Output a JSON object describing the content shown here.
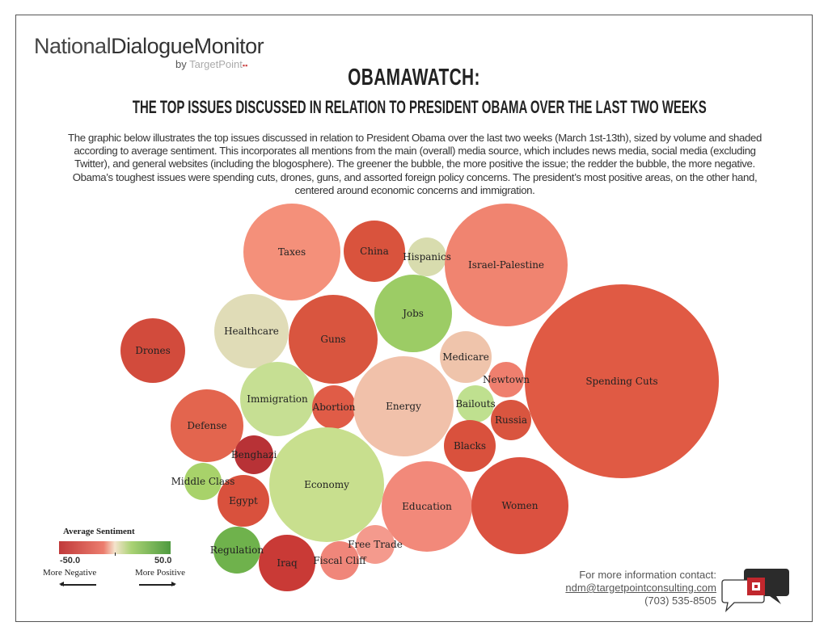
{
  "logo": {
    "text_light": "National",
    "text_bold": "DialogueMonitor",
    "by": "by",
    "brand": "TargetPoint"
  },
  "header": {
    "title": "OBAMAWATCH:",
    "subtitle": "THE TOP ISSUES DISCUSSED IN RELATION TO PRESIDENT OBAMA OVER THE LAST TWO WEEKS",
    "description": "The graphic below illustrates the top issues discussed in relation to President Obama over the last two weeks (March 1st-13th), sized by volume and shaded according to average sentiment. This incorporates all mentions from the main (overall) media source, which includes news media, social media (excluding Twitter), and general websites (including the blogosphere). The greener the bubble, the more positive the issue; the redder the bubble, the more negative. Obama’s toughest issues were spending cuts, drones, guns, and assorted foreign policy concerns. The president’s most positive areas, on the other hand, centered around economic concerns and immigration."
  },
  "chart_data": {
    "type": "bubble",
    "size_encoding": "volume",
    "color_encoding": "average sentiment",
    "bubbles": [
      {
        "label": "Taxes",
        "sentiment": -22,
        "color": "#f4907a"
      },
      {
        "label": "China",
        "sentiment": -38,
        "color": "#d9533d"
      },
      {
        "label": "Hispanics",
        "sentiment": 5,
        "color": "#d8dcae"
      },
      {
        "label": "Israel-Palestine",
        "sentiment": -26,
        "color": "#f08470"
      },
      {
        "label": "Jobs",
        "sentiment": 22,
        "color": "#9ccc65"
      },
      {
        "label": "Healthcare",
        "sentiment": 3,
        "color": "#e0dcb7"
      },
      {
        "label": "Guns",
        "sentiment": -37,
        "color": "#d9553f"
      },
      {
        "label": "Drones",
        "sentiment": -40,
        "color": "#d24b3c"
      },
      {
        "label": "Medicare",
        "sentiment": -6,
        "color": "#efc4ab"
      },
      {
        "label": "Spending Cuts",
        "sentiment": -35,
        "color": "#e05a44"
      },
      {
        "label": "Newtown",
        "sentiment": -28,
        "color": "#ef7f6e"
      },
      {
        "label": "Immigration",
        "sentiment": 12,
        "color": "#c6df93"
      },
      {
        "label": "Abortion",
        "sentiment": -35,
        "color": "#e05c47"
      },
      {
        "label": "Energy",
        "sentiment": -7,
        "color": "#f1c1aa"
      },
      {
        "label": "Bailouts",
        "sentiment": 14,
        "color": "#bfe08f"
      },
      {
        "label": "Russia",
        "sentiment": -38,
        "color": "#d9553f"
      },
      {
        "label": "Defense",
        "sentiment": -32,
        "color": "#e3654e"
      },
      {
        "label": "Blacks",
        "sentiment": -39,
        "color": "#d9513d"
      },
      {
        "label": "Benghazi",
        "sentiment": -48,
        "color": "#b83236"
      },
      {
        "label": "Economy",
        "sentiment": 12,
        "color": "#c8df8e"
      },
      {
        "label": "Middle Class",
        "sentiment": 20,
        "color": "#a8d26a"
      },
      {
        "label": "Egypt",
        "sentiment": -39,
        "color": "#d9513d"
      },
      {
        "label": "Education",
        "sentiment": -25,
        "color": "#f2897a"
      },
      {
        "label": "Women",
        "sentiment": -38,
        "color": "#db5140"
      },
      {
        "label": "Free Trade",
        "sentiment": -20,
        "color": "#f49a8d"
      },
      {
        "label": "Regulation",
        "sentiment": 35,
        "color": "#6fb24c"
      },
      {
        "label": "Iraq",
        "sentiment": -45,
        "color": "#c93a36"
      },
      {
        "label": "Fiscal Cliff",
        "sentiment": -26,
        "color": "#f0867a"
      }
    ],
    "legend": {
      "title": "Average Sentiment",
      "min": "-50.0",
      "max": "50.0",
      "min_label": "More Negative",
      "max_label": "More Positive",
      "range": [
        -50,
        50
      ],
      "colors": [
        "#c0393a",
        "#f4e3cc",
        "#4e9a3f"
      ]
    }
  },
  "contact": {
    "heading": "For more information contact:",
    "email": "ndm@targetpointconsulting.com",
    "phone": "(703) 535-8505"
  }
}
